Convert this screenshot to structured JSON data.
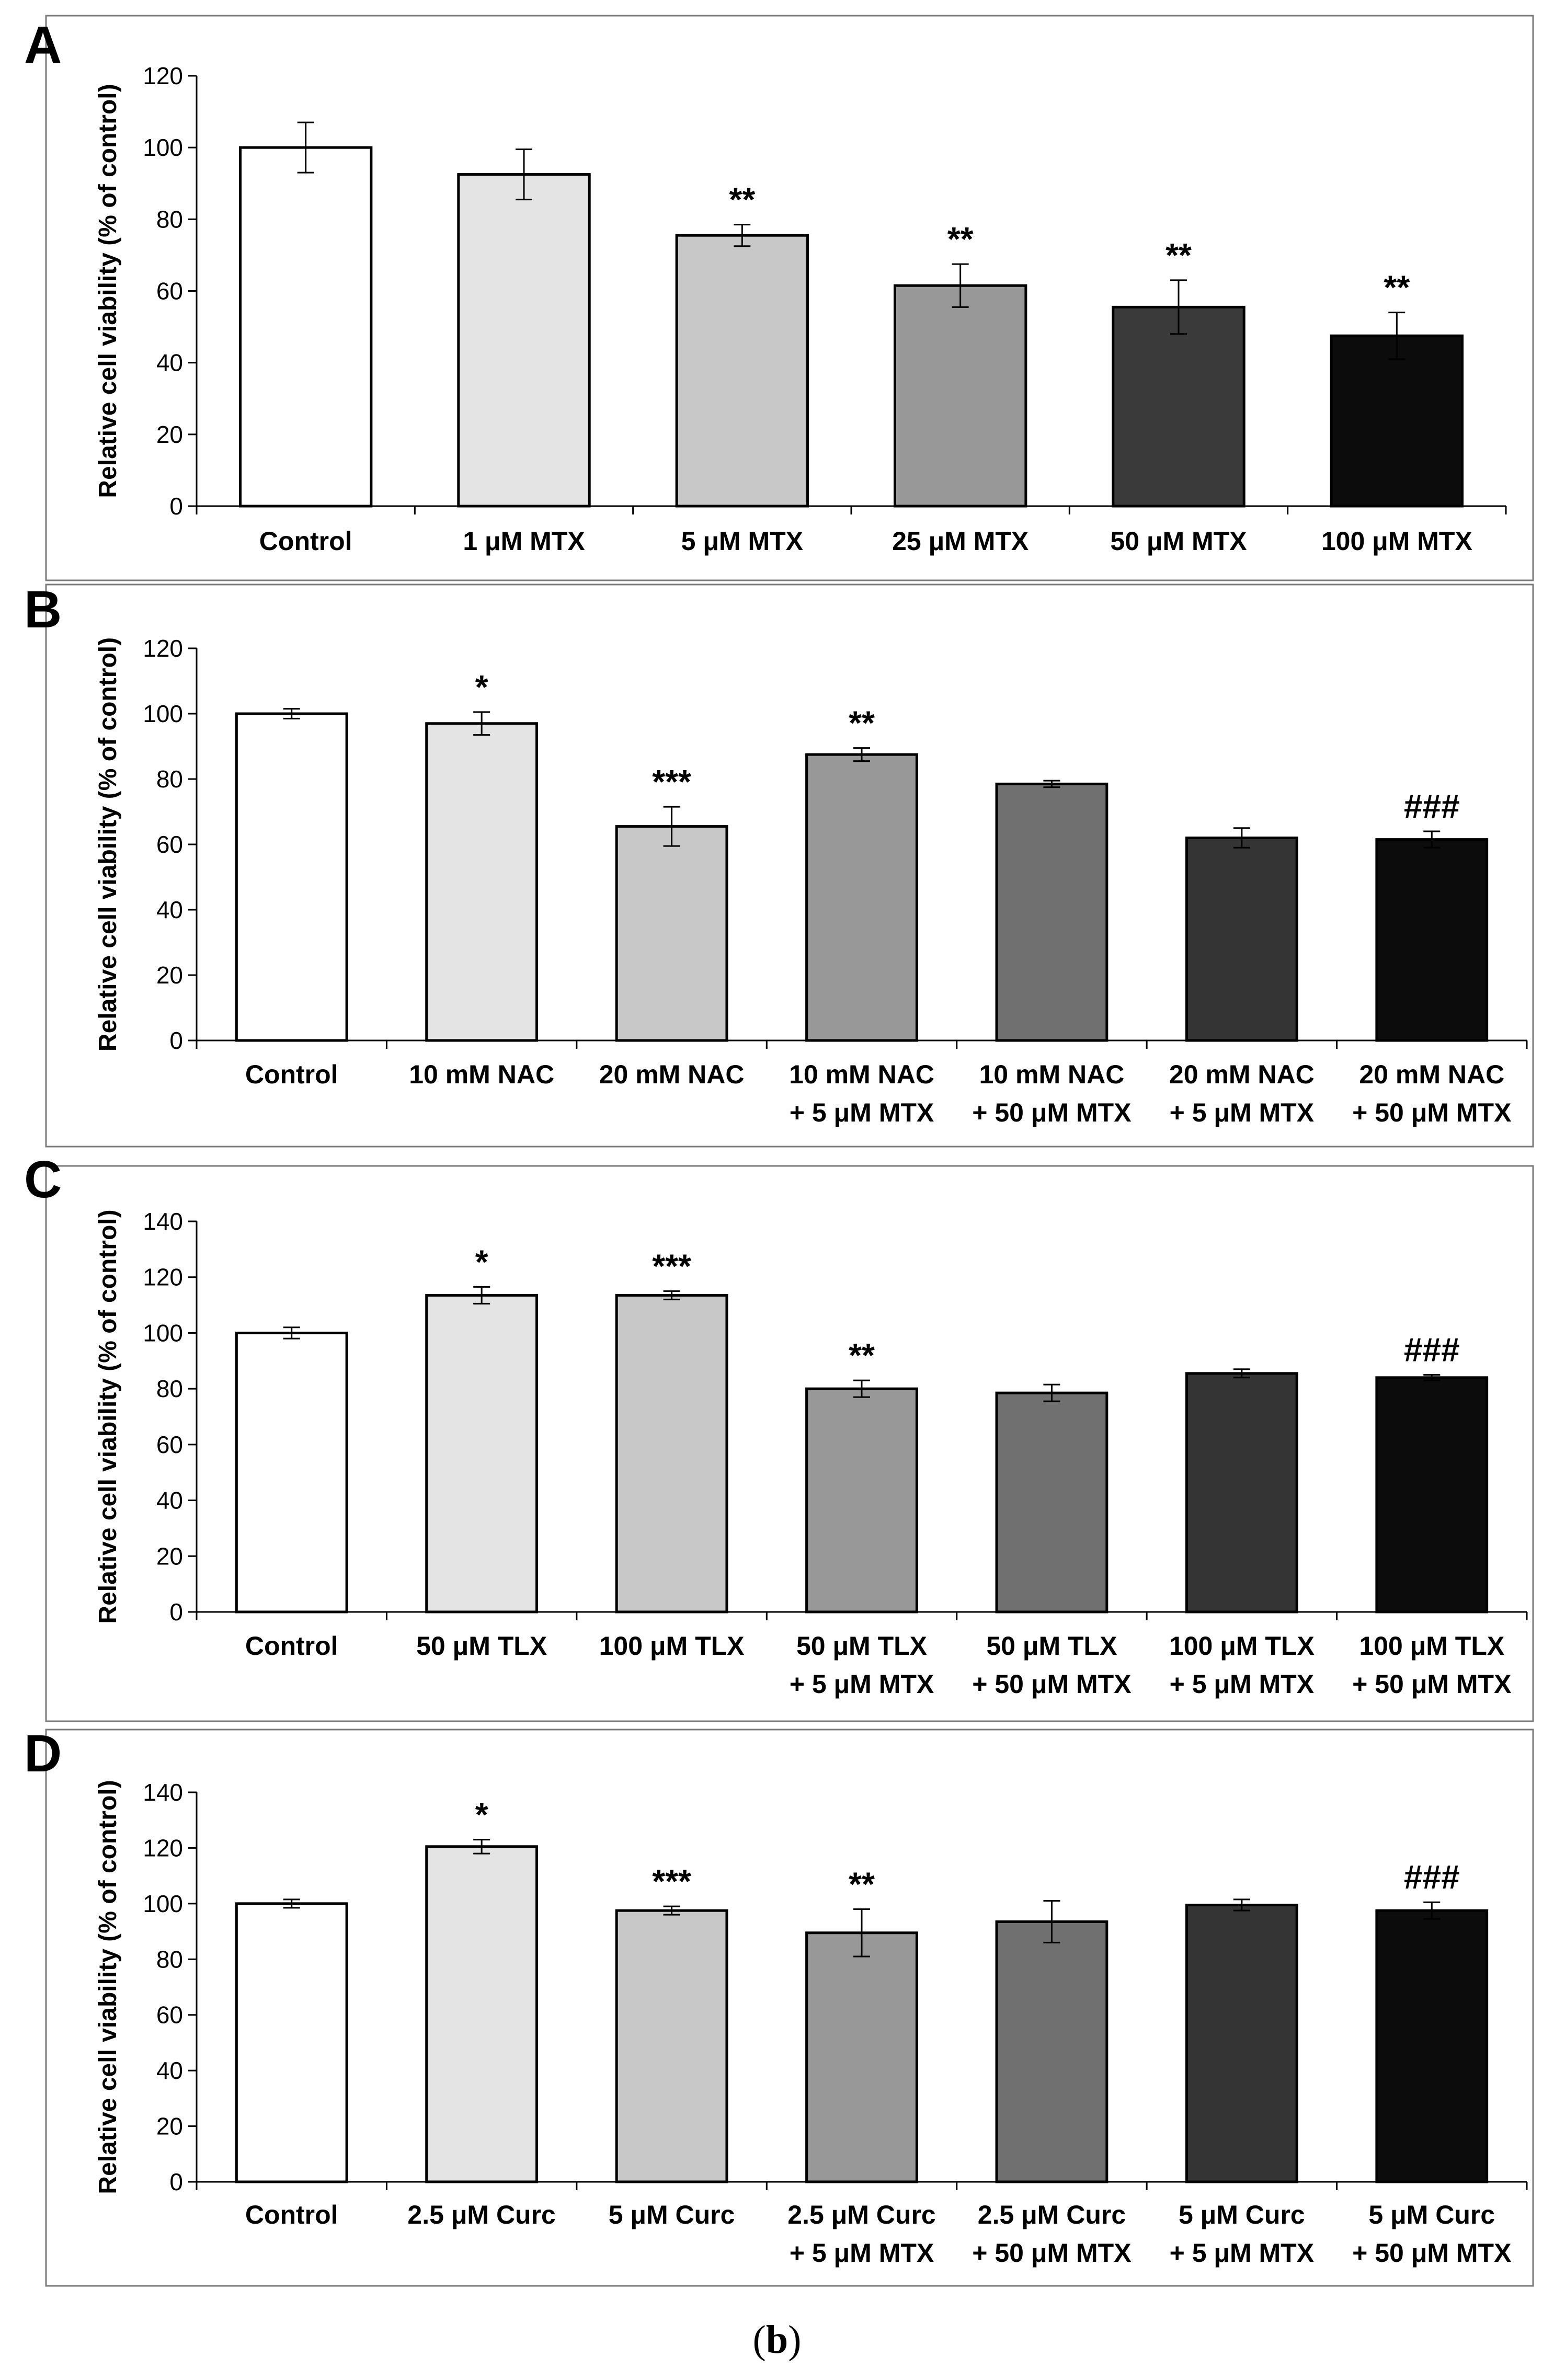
{
  "caption": {
    "open": "(",
    "letter": "b",
    "close": ")"
  },
  "chart_data": [
    {
      "type": "bar",
      "panel": "A",
      "ylabel": "Relative cell viability (% of control)",
      "ylim": [
        0,
        120
      ],
      "yticks": [
        0,
        20,
        40,
        60,
        80,
        100,
        120
      ],
      "categories": [
        [
          "Control"
        ],
        [
          "1 μM MTX"
        ],
        [
          "5 μM MTX"
        ],
        [
          "25 μM MTX"
        ],
        [
          "50 μM MTX"
        ],
        [
          "100 μM MTX"
        ]
      ],
      "values": [
        100,
        92.5,
        75.5,
        61.5,
        55.5,
        47.5
      ],
      "errors": [
        7,
        7,
        3,
        6,
        7.5,
        6.5
      ],
      "annotations": [
        "",
        "",
        "**",
        "**",
        "**",
        "**"
      ],
      "colors": [
        "#ffffff",
        "#e4e4e4",
        "#c8c8c8",
        "#989898",
        "#3a3a3a",
        "#0c0c0c"
      ]
    },
    {
      "type": "bar",
      "panel": "B",
      "ylabel": "Relative cell viability (% of control)",
      "ylim": [
        0,
        120
      ],
      "yticks": [
        0,
        20,
        40,
        60,
        80,
        100,
        120
      ],
      "categories": [
        [
          "Control"
        ],
        [
          "10 mM NAC"
        ],
        [
          "20 mM NAC"
        ],
        [
          "10 mM NAC",
          "+ 5 μM MTX"
        ],
        [
          "10 mM NAC",
          "+ 50 μM MTX"
        ],
        [
          "20 mM NAC",
          "+ 5 μM MTX"
        ],
        [
          "20 mM NAC",
          "+ 50 μM MTX"
        ]
      ],
      "values": [
        100,
        97,
        65.5,
        87.5,
        78.5,
        62,
        61.5
      ],
      "errors": [
        1.5,
        3.5,
        6,
        2,
        1,
        3,
        2.5
      ],
      "annotations": [
        "",
        "*",
        "***",
        "**",
        "",
        "",
        "###"
      ],
      "colors": [
        "#ffffff",
        "#e4e4e4",
        "#c8c8c8",
        "#989898",
        "#707070",
        "#343434",
        "#0c0c0c"
      ]
    },
    {
      "type": "bar",
      "panel": "C",
      "ylabel": "Relative cell viability (% of control)",
      "ylim": [
        0,
        140
      ],
      "yticks": [
        0,
        20,
        40,
        60,
        80,
        100,
        120,
        140
      ],
      "categories": [
        [
          "Control"
        ],
        [
          "50 μM TLX"
        ],
        [
          "100 μM TLX"
        ],
        [
          "50 μM TLX",
          "+ 5 μM MTX"
        ],
        [
          "50 μM TLX",
          "+ 50 μM MTX"
        ],
        [
          "100 μM TLX",
          "+ 5 μM MTX"
        ],
        [
          "100 μM TLX",
          "+ 50 μM MTX"
        ]
      ],
      "values": [
        100,
        113.5,
        113.5,
        80,
        78.5,
        85.5,
        84
      ],
      "errors": [
        2,
        3,
        1.5,
        3,
        3,
        1.5,
        1
      ],
      "annotations": [
        "",
        "*",
        "***",
        "**",
        "",
        "",
        "###"
      ],
      "colors": [
        "#ffffff",
        "#e4e4e4",
        "#c8c8c8",
        "#989898",
        "#707070",
        "#343434",
        "#0c0c0c"
      ]
    },
    {
      "type": "bar",
      "panel": "D",
      "ylabel": "Relative cell viability (% of control)",
      "ylim": [
        0,
        140
      ],
      "yticks": [
        0,
        20,
        40,
        60,
        80,
        100,
        120,
        140
      ],
      "categories": [
        [
          "Control"
        ],
        [
          "2.5 μM Curc"
        ],
        [
          "5 μM Curc"
        ],
        [
          "2.5 μM Curc",
          "+ 5 μM MTX"
        ],
        [
          "2.5 μM Curc",
          "+ 50 μM MTX"
        ],
        [
          "5 μM Curc",
          "+ 5 μM MTX"
        ],
        [
          "5 μM Curc",
          "+ 50 μM MTX"
        ]
      ],
      "values": [
        100,
        120.5,
        97.5,
        89.5,
        93.5,
        99.5,
        97.5
      ],
      "errors": [
        1.5,
        2.5,
        1.5,
        8.5,
        7.5,
        2,
        3
      ],
      "annotations": [
        "",
        "*",
        "***",
        "**",
        "",
        "",
        "###"
      ],
      "colors": [
        "#ffffff",
        "#e4e4e4",
        "#c8c8c8",
        "#989898",
        "#707070",
        "#343434",
        "#0c0c0c"
      ]
    }
  ]
}
